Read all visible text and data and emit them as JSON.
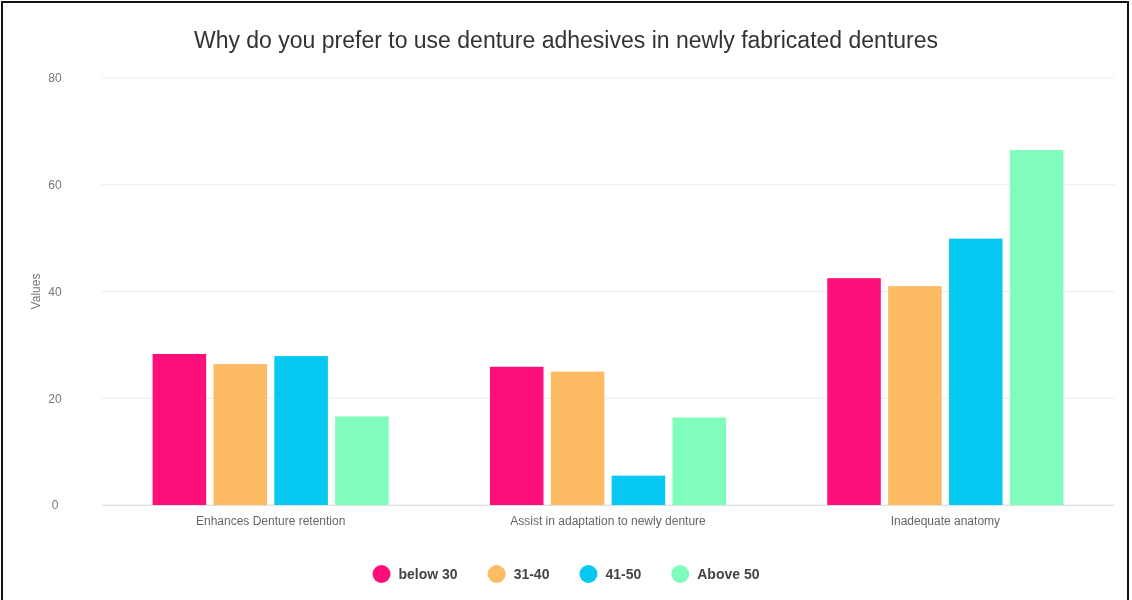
{
  "chart_data": {
    "type": "bar",
    "title": "Why do you prefer to use denture adhesives in newly fabricated dentures",
    "ylabel": "Values",
    "categories": [
      "Enhances Denture retention",
      "Assist in adaptation to newly denture",
      "Inadequate anatomy"
    ],
    "series": [
      {
        "name": "below 30",
        "color": "#fe0f7a",
        "values": [
          28.3,
          25.9,
          42.5
        ]
      },
      {
        "name": "31-40",
        "color": "#fdbc63",
        "values": [
          26.4,
          25.0,
          41.0
        ]
      },
      {
        "name": "41-50",
        "color": "#06c8f0",
        "values": [
          27.9,
          5.5,
          49.9
        ]
      },
      {
        "name": "Above 50",
        "color": "#80fcbc",
        "values": [
          16.6,
          16.4,
          66.5
        ]
      }
    ],
    "ylim": [
      0,
      80
    ],
    "yticks": [
      0,
      20,
      40,
      60,
      80
    ],
    "grid": "y",
    "legend": "bottom"
  }
}
